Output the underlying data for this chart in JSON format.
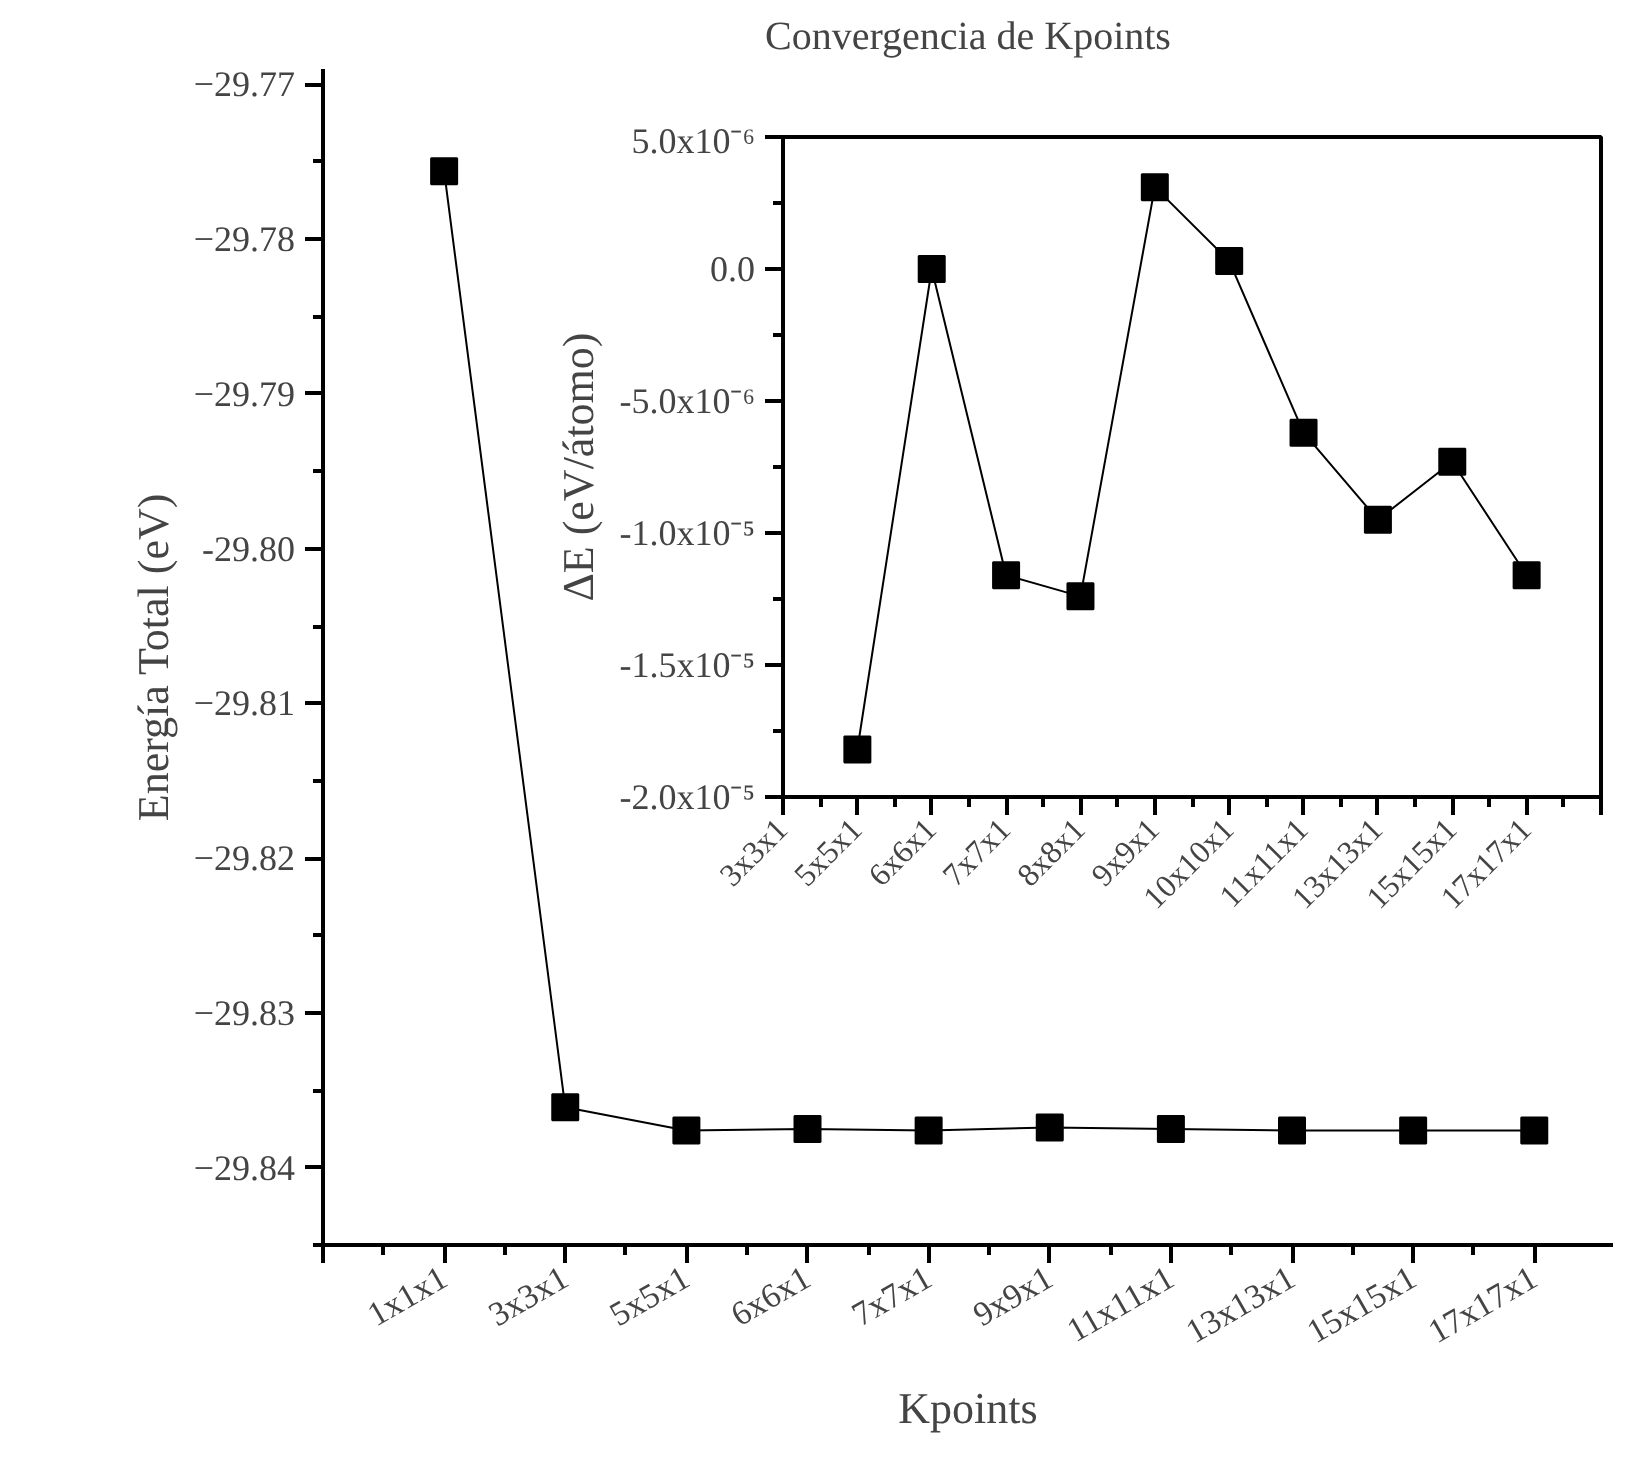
{
  "chart_data": [
    {
      "type": "line",
      "title": "Convergencia de Kpoints",
      "xlabel": "Kpoints",
      "ylabel": "Energía Total (eV)",
      "categories": [
        "1x1x1",
        "3x3x1",
        "5x5x1",
        "6x6x1",
        "7x7x1",
        "9x9x1",
        "11x11x1",
        "13x13x1",
        "15x15x1",
        "17x17x1"
      ],
      "series": [
        {
          "color": "#000000",
          "values": [
            -29.7756,
            -29.8361,
            -29.8376,
            -29.8375,
            -29.8376,
            -29.8374,
            -29.8375,
            -29.8376,
            -29.8376,
            -29.8376
          ]
        }
      ],
      "ylim": [
        -29.845,
        -29.769
      ],
      "yticks": [
        -29.77,
        -29.78,
        -29.79,
        {
          "value": -29.8,
          "label": "-29.80"
        },
        -29.81,
        -29.82,
        -29.83,
        -29.84
      ],
      "marker": "square",
      "line_style": "solid",
      "grid": false
    },
    {
      "type": "line",
      "ylabel": "ΔE (eV/átomo)",
      "categories": [
        "3x3x1",
        "5x5x1",
        "6x6x1",
        "7x7x1",
        "8x8x1",
        "9x9x1",
        "10x10x1",
        "11x11x1",
        "13x13x1",
        "15x15x1",
        "17x17x1"
      ],
      "series": [
        {
          "color": "#000000",
          "values": [
            null,
            -1.82e-05,
            0.0,
            -1.16e-05,
            -1.24e-05,
            3.1e-06,
            3e-07,
            -6.2e-06,
            -9.5e-06,
            -7.3e-06,
            -1.16e-05
          ]
        }
      ],
      "ylim": [
        -2e-05,
        5e-06
      ],
      "yticks": [
        {
          "value": -2e-05,
          "label": "-2.0x10⁻⁵"
        },
        {
          "value": -1.5e-05,
          "label": "-1.5x10⁻⁵"
        },
        {
          "value": -1e-05,
          "label": "-1.0x10⁻⁵"
        },
        {
          "value": -5e-06,
          "label": "-5.0x10⁻⁶"
        },
        {
          "value": 0.0,
          "label": "0.0"
        },
        {
          "value": 5e-06,
          "label": "5.0x10⁻⁶"
        }
      ],
      "marker": "square",
      "line_style": "solid",
      "grid": false
    }
  ]
}
